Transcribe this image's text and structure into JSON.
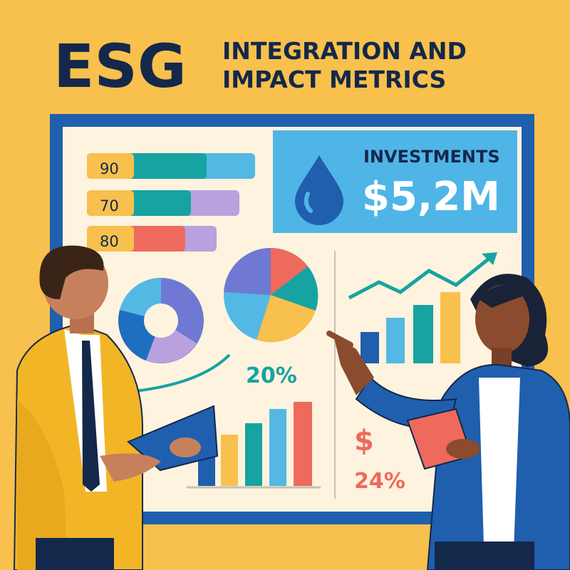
{
  "header": {
    "title": "ESG",
    "subtitle_lines": [
      "INTEGRATION AND",
      "IMPACT METRICS"
    ]
  },
  "board": {
    "score_bars": [
      {
        "label": "90"
      },
      {
        "label": "70"
      },
      {
        "label": "80"
      }
    ],
    "investments": {
      "label": "INVESTMENTS",
      "amount": "$5,2M"
    },
    "growth_label": "20%",
    "currency_symbol": "$",
    "percent_label": "24%"
  }
}
